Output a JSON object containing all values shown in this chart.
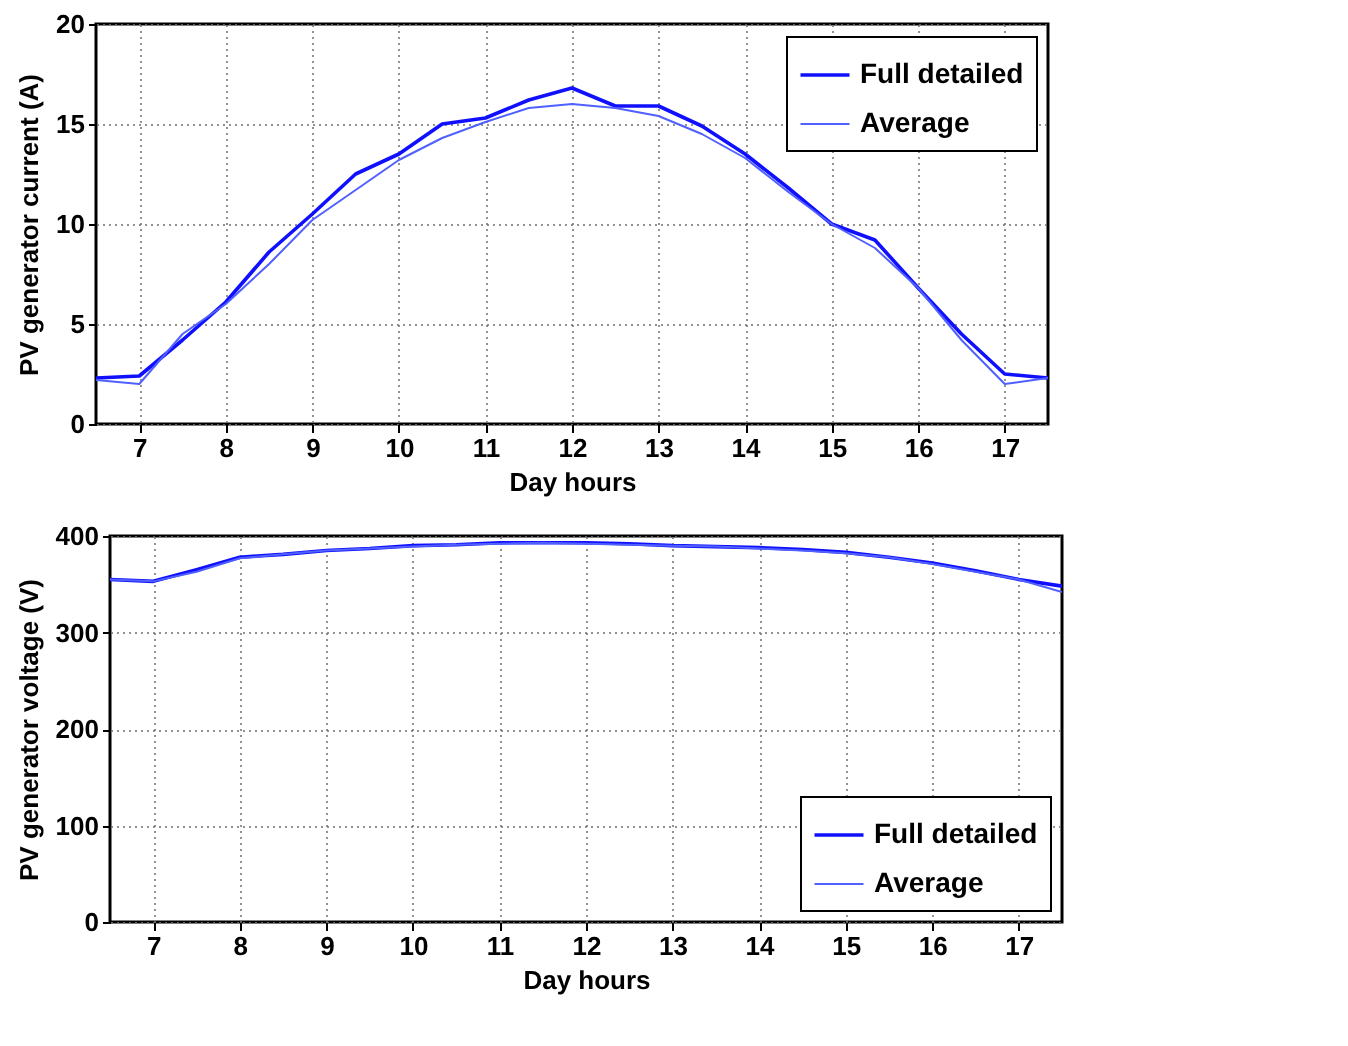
{
  "chart_data": [
    {
      "type": "line",
      "xlabel": "Day hours",
      "ylabel": "PV generator current (A)",
      "x": [
        6.5,
        7,
        7.5,
        8,
        8.5,
        9,
        9.5,
        10,
        10.5,
        11,
        11.5,
        12,
        12.5,
        13,
        13.5,
        14,
        14.5,
        15,
        15.5,
        16,
        16.5,
        17,
        17.5
      ],
      "series": [
        {
          "name": "Full detailed",
          "color": "#1010ff",
          "values": [
            2.3,
            2.4,
            4.2,
            6.1,
            8.6,
            10.5,
            12.5,
            13.5,
            15.0,
            15.3,
            16.2,
            16.8,
            15.9,
            15.9,
            14.9,
            13.5,
            11.8,
            10.0,
            9.2,
            6.8,
            4.5,
            2.5,
            2.3
          ]
        },
        {
          "name": "Average",
          "color": "#5060ff",
          "values": [
            2.2,
            2.0,
            4.5,
            6.0,
            8.0,
            10.2,
            11.7,
            13.2,
            14.3,
            15.1,
            15.8,
            16.0,
            15.8,
            15.4,
            14.5,
            13.3,
            11.6,
            10.0,
            8.8,
            6.8,
            4.2,
            2.0,
            2.3
          ]
        }
      ],
      "xlim": [
        6.5,
        17.5
      ],
      "xticks": [
        7,
        8,
        9,
        10,
        11,
        12,
        13,
        14,
        15,
        16,
        17
      ],
      "ylim": [
        0,
        20
      ],
      "yticks": [
        0,
        5,
        10,
        15,
        20
      ],
      "grid": true,
      "legend": "top right"
    },
    {
      "type": "line",
      "xlabel": "Day hours",
      "ylabel": "PV generator voltage (V)",
      "x": [
        6.5,
        7,
        7.5,
        8,
        8.5,
        9,
        9.5,
        10,
        10.5,
        11,
        11.5,
        12,
        12.5,
        13,
        13.5,
        14,
        14.5,
        15,
        15.5,
        16,
        16.5,
        17,
        17.5
      ],
      "series": [
        {
          "name": "Full detailed",
          "color": "#1010ff",
          "values": [
            355,
            353,
            365,
            378,
            381,
            385,
            387,
            390,
            391,
            393,
            393,
            393,
            392,
            390,
            389,
            388,
            386,
            383,
            378,
            372,
            364,
            355,
            348
          ]
        },
        {
          "name": "Average",
          "color": "#5060ff",
          "values": [
            355,
            353,
            363,
            377,
            381,
            385,
            387,
            389,
            391,
            392,
            393,
            392,
            391,
            390,
            389,
            387,
            385,
            382,
            378,
            371,
            363,
            355,
            342
          ]
        }
      ],
      "xlim": [
        6.5,
        17.5
      ],
      "xticks": [
        7,
        8,
        9,
        10,
        11,
        12,
        13,
        14,
        15,
        16,
        17
      ],
      "ylim": [
        0,
        400
      ],
      "yticks": [
        0,
        100,
        200,
        300,
        400
      ],
      "grid": true,
      "legend": "bottom right"
    }
  ]
}
